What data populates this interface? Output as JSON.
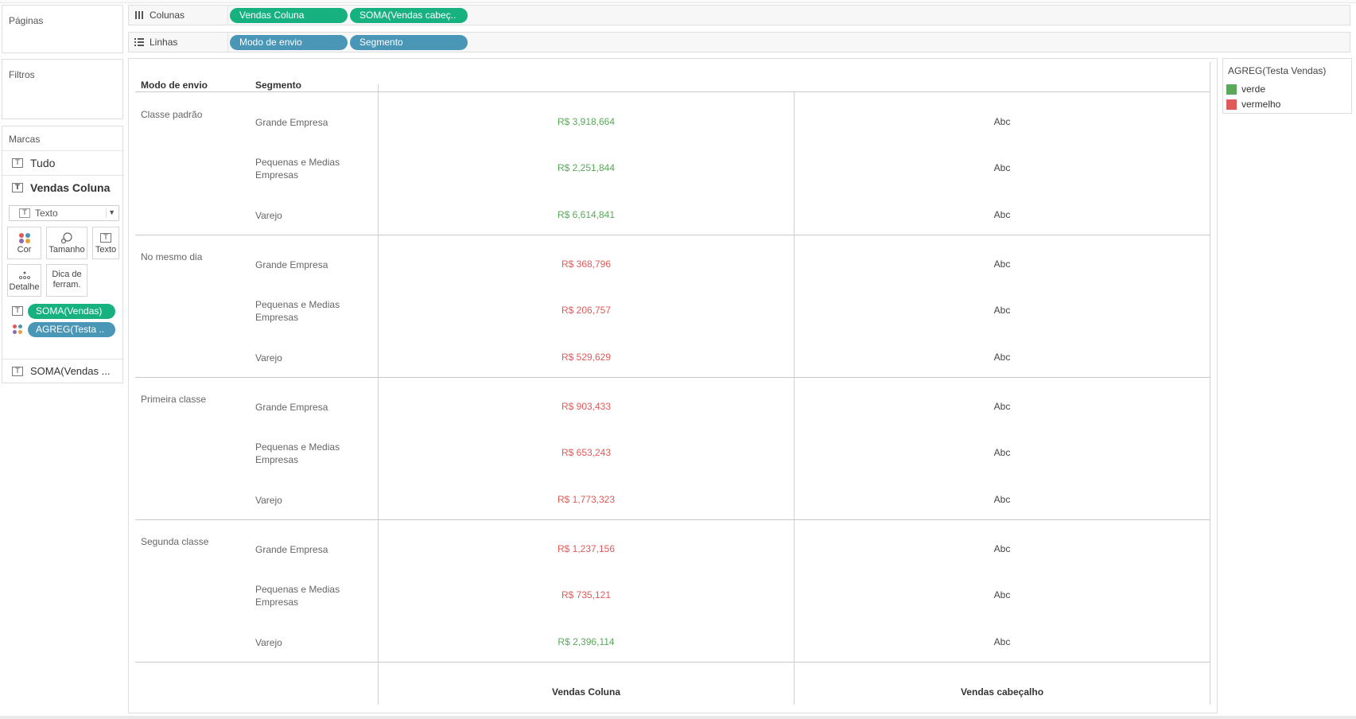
{
  "panels": {
    "pages_title": "Páginas",
    "filters_title": "Filtros",
    "marks_title": "Marcas"
  },
  "shelves": {
    "columns": {
      "label": "Colunas",
      "pills": [
        {
          "text": "Vendas Coluna",
          "color": "#17b07f"
        },
        {
          "text": "SOMA(Vendas cabeç..",
          "color": "#17b07f"
        }
      ]
    },
    "rows": {
      "label": "Linhas",
      "pills": [
        {
          "text": "Modo de envio",
          "color": "#4a96b6"
        },
        {
          "text": "Segmento",
          "color": "#4a96b6"
        }
      ]
    }
  },
  "marks": {
    "all_label": "Tudo",
    "active_label": "Vendas Coluna",
    "mark_type": "Texto",
    "buttons": {
      "color": "Cor",
      "size": "Tamanho",
      "text": "Texto",
      "detail": "Detalhe",
      "tooltip": "Dica de ferram."
    },
    "fields": [
      {
        "text": "SOMA(Vendas)",
        "color": "#17b07f",
        "icon": "text-icon"
      },
      {
        "text": "AGREG(Testa ..",
        "color": "#4a96b6",
        "icon": "color-icon"
      }
    ],
    "secondary_label": "SOMA(Vendas ..."
  },
  "table": {
    "headers": {
      "ship_mode": "Modo de envio",
      "segment": "Segmento",
      "col1": "Vendas Coluna",
      "col2": "Vendas cabeçalho"
    },
    "groups": [
      {
        "mode": "Classe padrão",
        "rows": [
          {
            "segment": "Grande Empresa",
            "value": "R$ 3,918,664",
            "status": "verde",
            "abc": "Abc"
          },
          {
            "segment": "Pequenas e Medias Empresas",
            "value": "R$ 2,251,844",
            "status": "verde",
            "abc": "Abc"
          },
          {
            "segment": "Varejo",
            "value": "R$ 6,614,841",
            "status": "verde",
            "abc": "Abc"
          }
        ]
      },
      {
        "mode": "No mesmo dia",
        "rows": [
          {
            "segment": "Grande Empresa",
            "value": "R$ 368,796",
            "status": "vermelho",
            "abc": "Abc"
          },
          {
            "segment": "Pequenas e Medias Empresas",
            "value": "R$ 206,757",
            "status": "vermelho",
            "abc": "Abc"
          },
          {
            "segment": "Varejo",
            "value": "R$ 529,629",
            "status": "vermelho",
            "abc": "Abc"
          }
        ]
      },
      {
        "mode": "Primeira classe",
        "rows": [
          {
            "segment": "Grande Empresa",
            "value": "R$ 903,433",
            "status": "vermelho",
            "abc": "Abc"
          },
          {
            "segment": "Pequenas e Medias Empresas",
            "value": "R$ 653,243",
            "status": "vermelho",
            "abc": "Abc"
          },
          {
            "segment": "Varejo",
            "value": "R$ 1,773,323",
            "status": "vermelho",
            "abc": "Abc"
          }
        ]
      },
      {
        "mode": "Segunda classe",
        "rows": [
          {
            "segment": "Grande Empresa",
            "value": "R$ 1,237,156",
            "status": "vermelho",
            "abc": "Abc"
          },
          {
            "segment": "Pequenas e Medias Empresas",
            "value": "R$ 735,121",
            "status": "vermelho",
            "abc": "Abc"
          },
          {
            "segment": "Varejo",
            "value": "R$ 2,396,114",
            "status": "verde",
            "abc": "Abc"
          }
        ]
      }
    ]
  },
  "legend": {
    "title": "AGREG(Testa Vendas)",
    "items": [
      {
        "label": "verde",
        "color": "#5ba85a"
      },
      {
        "label": "vermelho",
        "color": "#e05a5a"
      }
    ]
  },
  "colors": {
    "verde_text": "#5ba85a",
    "vermelho_text": "#e05a5a"
  }
}
